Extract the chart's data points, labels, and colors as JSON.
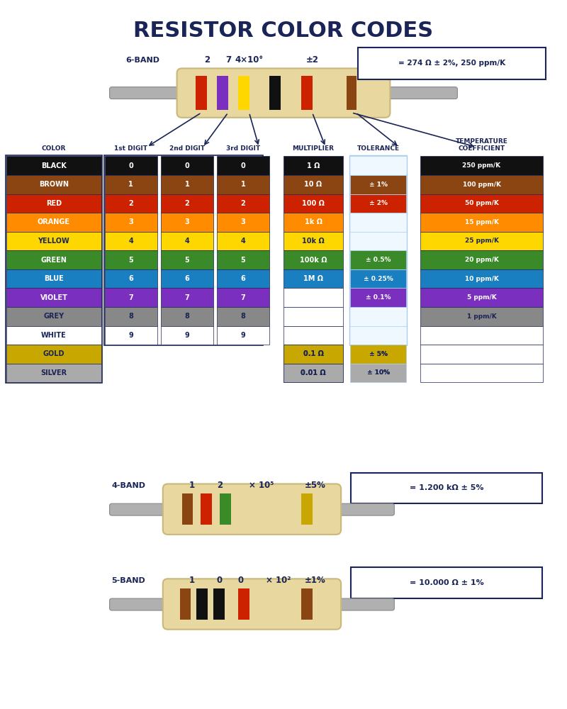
{
  "title": "RESISTOR COLOR CODES",
  "title_color": "#1a2456",
  "bg_color": "#ffffff",
  "colors": {
    "BLACK": "#111111",
    "BROWN": "#8B4513",
    "RED": "#CC2200",
    "ORANGE": "#FF8C00",
    "YELLOW": "#FFD700",
    "GREEN": "#3A8A2A",
    "BLUE": "#1A7FC1",
    "VIOLET": "#7B2FBE",
    "GREY": "#888888",
    "WHITE": "#FFFFFF",
    "GOLD": "#C8A800",
    "SILVER": "#AAAAAA"
  },
  "color_names": [
    "BLACK",
    "BROWN",
    "RED",
    "ORANGE",
    "YELLOW",
    "GREEN",
    "BLUE",
    "VIOLET",
    "GREY",
    "WHITE",
    "GOLD",
    "SILVER"
  ],
  "digit_values": [
    "0",
    "1",
    "2",
    "3",
    "4",
    "5",
    "6",
    "7",
    "8",
    "9",
    "",
    ""
  ],
  "multiplier_values": [
    "1 Ω",
    "10 Ω",
    "100 Ω",
    "1k Ω",
    "10k Ω",
    "100k Ω",
    "1M Ω",
    "",
    "",
    "",
    "0.1 Ω",
    "0.01 Ω"
  ],
  "tolerance_values": [
    "",
    "± 1%",
    "± 2%",
    "",
    "",
    "± 0.5%",
    "± 0.25%",
    "± 0.1%",
    "",
    "",
    "± 5%",
    "± 10%"
  ],
  "temp_coeff_values": [
    "250 ppm/K",
    "100 ppm/K",
    "50 ppm/K",
    "15 ppm/K",
    "25 ppm/K",
    "20 ppm/K",
    "10 ppm/K",
    "5 ppm/K",
    "1 ppm/K",
    "",
    "",
    ""
  ],
  "table_border": "#1a2456",
  "text_dark": "#1a2456",
  "text_white": "#ffffff",
  "text_yellow_on_dark": "#FFD700"
}
